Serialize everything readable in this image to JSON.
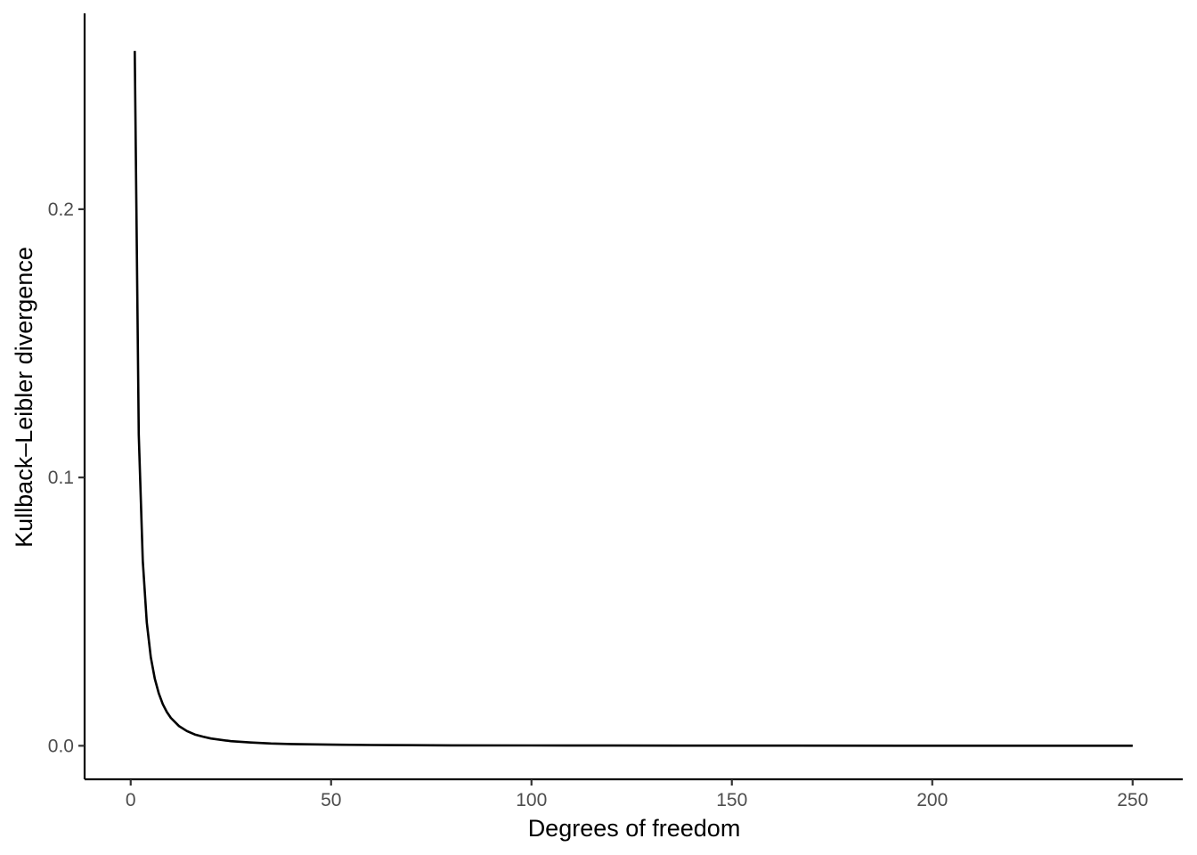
{
  "chart_data": {
    "type": "line",
    "title": "",
    "xlabel": "Degrees of freedom",
    "ylabel": "Kullback–Leibler divergence",
    "xlim": [
      -11.5,
      262.5
    ],
    "ylim": [
      -0.0125,
      0.273
    ],
    "x_ticks": [
      0,
      50,
      100,
      150,
      200,
      250
    ],
    "x_tick_labels": [
      "0",
      "50",
      "100",
      "150",
      "200",
      "250"
    ],
    "y_ticks": [
      0.0,
      0.1,
      0.2
    ],
    "y_tick_labels": [
      "0.0",
      "0.1",
      "0.2"
    ],
    "grid": false,
    "legend": "none",
    "line_color": "#000000",
    "series": [
      {
        "x": [
          1,
          2,
          3,
          4,
          5,
          6,
          7,
          8,
          9,
          10,
          12,
          14,
          16,
          18,
          20,
          25,
          30,
          35,
          40,
          50,
          60,
          70,
          80,
          100,
          120,
          150,
          200,
          250
        ],
        "values": [
          0.259,
          0.116,
          0.069,
          0.046,
          0.033,
          0.025,
          0.0195,
          0.0155,
          0.0126,
          0.0104,
          0.0074,
          0.0055,
          0.0042,
          0.0034,
          0.0027,
          0.0017,
          0.0012,
          0.00085,
          0.00065,
          0.00042,
          0.00029,
          0.00021,
          0.00016,
          0.0001,
          7e-05,
          4.5e-05,
          2.5e-05,
          1.6e-05
        ]
      }
    ]
  }
}
